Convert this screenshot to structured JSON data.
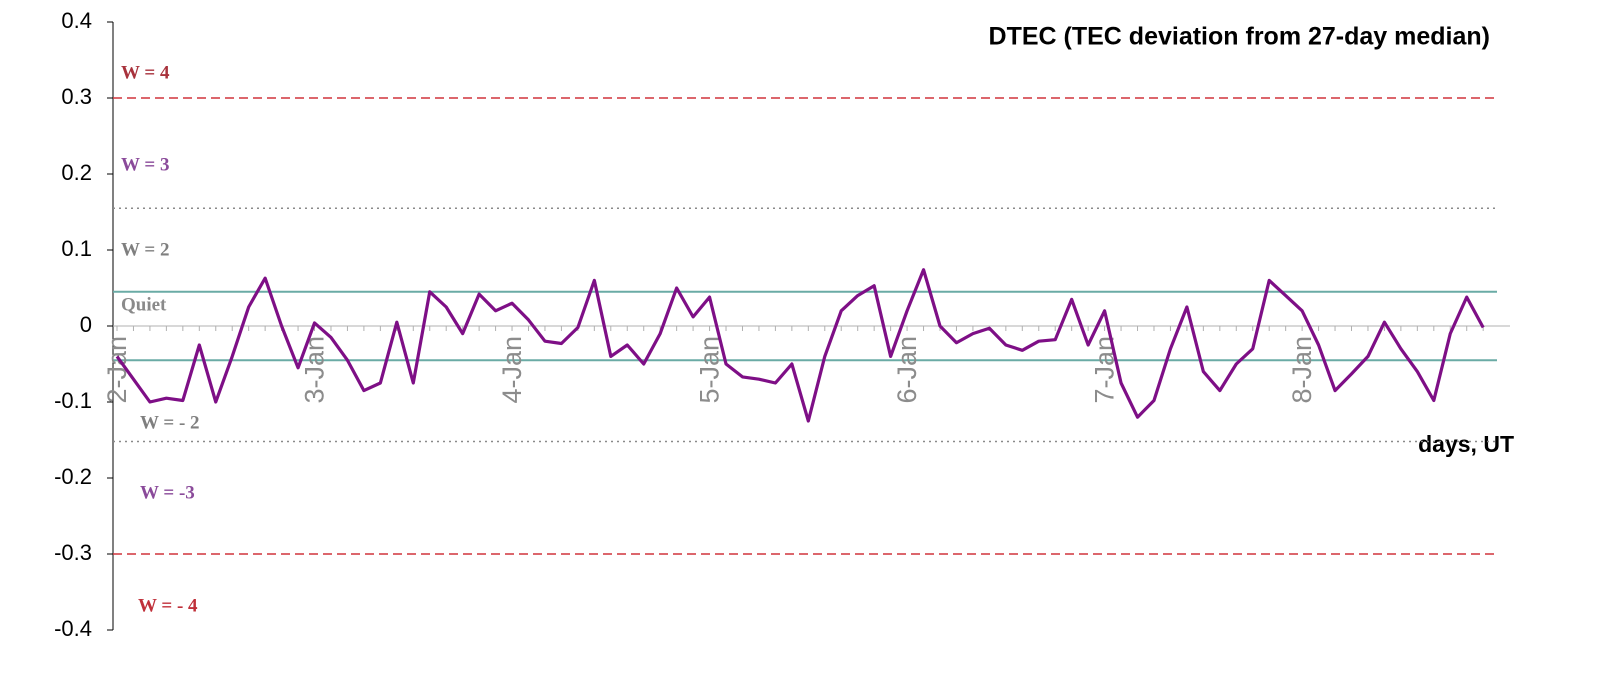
{
  "chart_data": {
    "type": "line",
    "title": "DTEC (TEC deviation from 27-day median)",
    "x_label": "days, UT",
    "categories": [
      "2-Jan",
      null,
      null,
      null,
      null,
      null,
      null,
      null,
      null,
      null,
      null,
      null,
      "3-Jan",
      null,
      null,
      null,
      null,
      null,
      null,
      null,
      null,
      null,
      null,
      null,
      "4-Jan",
      null,
      null,
      null,
      null,
      null,
      null,
      null,
      null,
      null,
      null,
      null,
      "5-Jan",
      null,
      null,
      null,
      null,
      null,
      null,
      null,
      null,
      null,
      null,
      null,
      "6-Jan",
      null,
      null,
      null,
      null,
      null,
      null,
      null,
      null,
      null,
      null,
      null,
      "7-Jan",
      null,
      null,
      null,
      null,
      null,
      null,
      null,
      null,
      null,
      null,
      null,
      "8-Jan",
      null,
      null,
      null,
      null,
      null,
      null,
      null,
      null,
      null,
      null,
      null
    ],
    "series": [
      {
        "color": "#7e0f86",
        "values": [
          -0.04,
          -0.07,
          -0.1,
          -0.095,
          -0.098,
          -0.025,
          -0.1,
          -0.04,
          0.025,
          0.063,
          0.0,
          -0.055,
          0.004,
          -0.015,
          -0.045,
          -0.085,
          -0.075,
          0.005,
          -0.075,
          0.045,
          0.025,
          -0.01,
          0.042,
          0.02,
          0.03,
          0.008,
          -0.02,
          -0.023,
          -0.002,
          0.06,
          -0.04,
          -0.025,
          -0.05,
          -0.01,
          0.05,
          0.012,
          0.038,
          -0.05,
          -0.067,
          -0.07,
          -0.075,
          -0.05,
          -0.125,
          -0.04,
          0.02,
          0.04,
          0.053,
          -0.04,
          0.02,
          0.074,
          0.0,
          -0.022,
          -0.01,
          -0.003,
          -0.025,
          -0.032,
          -0.02,
          -0.018,
          0.035,
          -0.025,
          0.02,
          -0.075,
          -0.12,
          -0.098,
          -0.03,
          0.025,
          -0.06,
          -0.085,
          -0.05,
          -0.03,
          0.06,
          0.04,
          0.02,
          -0.025,
          -0.085,
          -0.063,
          -0.04,
          0.005,
          -0.03,
          -0.06,
          -0.098,
          -0.01,
          0.038,
          -0.002
        ]
      }
    ],
    "ylim": [
      -0.4,
      0.4
    ],
    "yticks": [
      -0.4,
      -0.3,
      -0.2,
      -0.1,
      0,
      0.1,
      0.2,
      0.3,
      0.4
    ],
    "reference_lines": [
      {
        "value": 0.3,
        "color": "#d0343c",
        "style": "dashed"
      },
      {
        "value": 0.155,
        "color": "#8a8a8a",
        "style": "dotted"
      },
      {
        "value": 0.045,
        "color": "#6aaba5",
        "style": "solid"
      },
      {
        "value": -0.045,
        "color": "#6aaba5",
        "style": "solid"
      },
      {
        "value": -0.152,
        "color": "#8a8a8a",
        "style": "dotted"
      },
      {
        "value": -0.3,
        "color": "#d0343c",
        "style": "dashed"
      }
    ],
    "annotations": [
      {
        "text": "W = 4",
        "color": "#a8323c"
      },
      {
        "text": "W = 3",
        "color": "#8a4a9a"
      },
      {
        "text": "W = 2",
        "color": "#7f7f7f"
      },
      {
        "text": "Quiet",
        "color": "#8a8a8a"
      },
      {
        "text": "W = - 2",
        "color": "#7f7f7f"
      },
      {
        "text": "W = -3",
        "color": "#8a4a9a"
      },
      {
        "text": "W = - 4",
        "color": "#c0303a"
      }
    ]
  }
}
